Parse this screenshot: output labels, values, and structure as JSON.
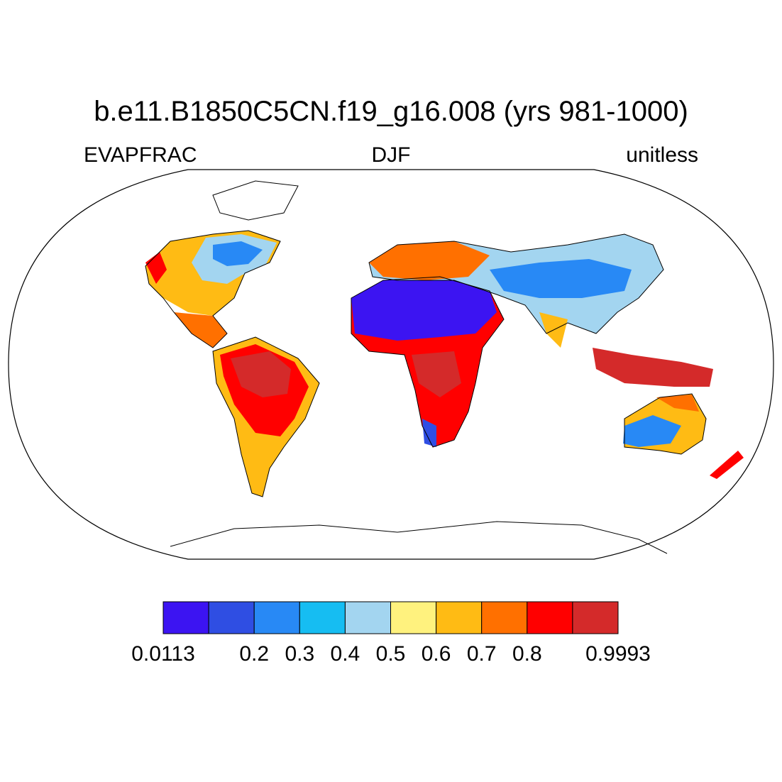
{
  "title": "b.e11.B1850C5CN.f19_g16.008 (yrs 981-1000)",
  "left_label": "EVAPFRAC",
  "center_label": "DJF",
  "right_label": "unitless",
  "colorbar": {
    "colors": [
      "#3c14f2",
      "#2f4ee3",
      "#2889f5",
      "#16bdf2",
      "#a3d5f0",
      "#fff27e",
      "#ffbb14",
      "#ff7000",
      "#ff0000",
      "#d42a2a"
    ],
    "edge_labels": [
      0.0113,
      null,
      0.2,
      0.3,
      0.4,
      0.5,
      0.6,
      0.7,
      0.8,
      null,
      0.9993
    ]
  }
}
